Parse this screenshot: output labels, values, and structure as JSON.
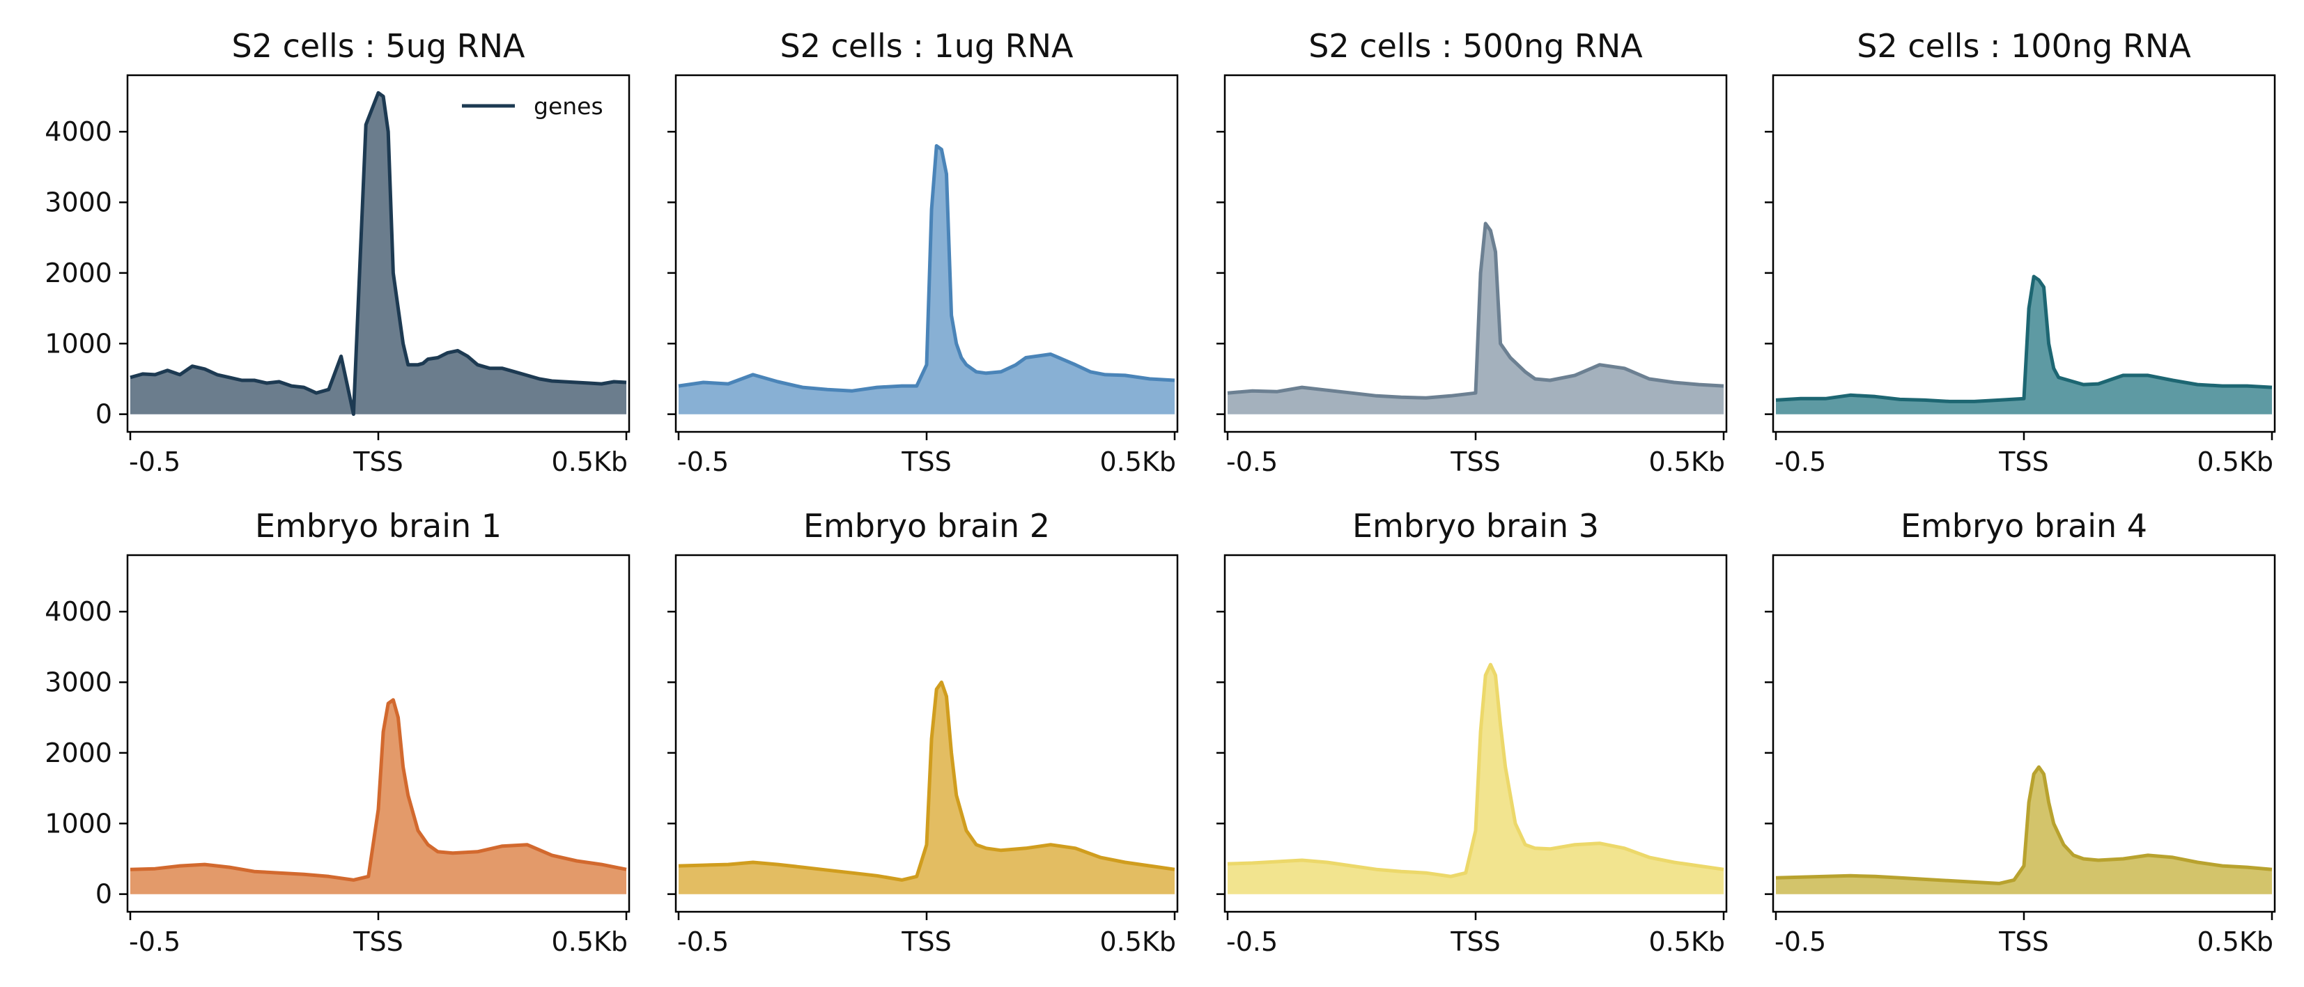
{
  "chart_data": [
    {
      "type": "area",
      "title": "S2 cells : 5ug RNA",
      "color": "#1d3a52",
      "fill_color": "#6b7d8d",
      "ylim": [
        -250,
        4800
      ],
      "yticks": [
        0,
        1000,
        2000,
        3000,
        4000
      ],
      "show_ytick_labels": true,
      "xticks": [
        "-0.5",
        "TSS",
        "0.5Kb"
      ],
      "legend": {
        "label": "genes",
        "position": "top-right"
      },
      "series": [
        {
          "name": "genes",
          "x": [
            -0.5,
            -0.475,
            -0.45,
            -0.425,
            -0.4,
            -0.375,
            -0.35,
            -0.325,
            -0.3,
            -0.275,
            -0.25,
            -0.225,
            -0.2,
            -0.175,
            -0.15,
            -0.125,
            -0.1,
            -0.075,
            -0.05,
            -0.025,
            0,
            0.01,
            0.02,
            0.03,
            0.04,
            0.05,
            0.06,
            0.07,
            0.08,
            0.09,
            0.1,
            0.12,
            0.14,
            0.16,
            0.18,
            0.2,
            0.225,
            0.25,
            0.275,
            0.3,
            0.325,
            0.35,
            0.375,
            0.4,
            0.425,
            0.45,
            0.475,
            0.5
          ],
          "y": [
            520,
            570,
            560,
            620,
            560,
            680,
            640,
            560,
            520,
            480,
            480,
            440,
            460,
            400,
            380,
            300,
            350,
            820,
            1,
            4100,
            4550,
            4500,
            4000,
            2000,
            1500,
            1000,
            700,
            700,
            700,
            720,
            780,
            800,
            870,
            900,
            820,
            700,
            650,
            650,
            600,
            550,
            500,
            470,
            460,
            450,
            440,
            430,
            460,
            450
          ]
        }
      ]
    },
    {
      "type": "area",
      "title": "S2 cells : 1ug RNA",
      "color": "#4a84b8",
      "fill_color": "#88b0d4",
      "ylim": [
        -250,
        4800
      ],
      "yticks": [
        0,
        1000,
        2000,
        3000,
        4000
      ],
      "show_ytick_labels": false,
      "xticks": [
        "-0.5",
        "TSS",
        "0.5Kb"
      ],
      "series": [
        {
          "x": [
            -0.5,
            -0.45,
            -0.4,
            -0.35,
            -0.3,
            -0.25,
            -0.2,
            -0.15,
            -0.1,
            -0.05,
            -0.02,
            0,
            0.01,
            0.02,
            0.03,
            0.04,
            0.05,
            0.06,
            0.07,
            0.08,
            0.1,
            0.12,
            0.15,
            0.18,
            0.2,
            0.25,
            0.3,
            0.33,
            0.36,
            0.4,
            0.45,
            0.5
          ],
          "y": [
            400,
            450,
            430,
            560,
            460,
            380,
            350,
            330,
            380,
            400,
            400,
            700,
            2900,
            3800,
            3750,
            3400,
            1400,
            1000,
            800,
            700,
            600,
            580,
            600,
            700,
            800,
            850,
            700,
            600,
            560,
            550,
            500,
            480
          ]
        }
      ]
    },
    {
      "type": "area",
      "title": "S2 cells : 500ng RNA",
      "color": "#6c8092",
      "fill_color": "#a4b1bd",
      "ylim": [
        -250,
        4800
      ],
      "yticks": [
        0,
        1000,
        2000,
        3000,
        4000
      ],
      "show_ytick_labels": false,
      "xticks": [
        "-0.5",
        "TSS",
        "0.5Kb"
      ],
      "series": [
        {
          "x": [
            -0.5,
            -0.45,
            -0.4,
            -0.35,
            -0.3,
            -0.25,
            -0.2,
            -0.15,
            -0.1,
            -0.05,
            0,
            0.01,
            0.02,
            0.03,
            0.04,
            0.05,
            0.07,
            0.1,
            0.12,
            0.15,
            0.2,
            0.25,
            0.3,
            0.35,
            0.4,
            0.45,
            0.5
          ],
          "y": [
            300,
            330,
            320,
            380,
            340,
            300,
            260,
            240,
            230,
            260,
            300,
            2000,
            2700,
            2600,
            2300,
            1000,
            800,
            600,
            500,
            480,
            550,
            700,
            650,
            500,
            450,
            420,
            400
          ]
        }
      ]
    },
    {
      "type": "area",
      "title": "S2 cells : 100ng RNA",
      "color": "#1d6672",
      "fill_color": "#5e9aa3",
      "ylim": [
        -250,
        4800
      ],
      "yticks": [
        0,
        1000,
        2000,
        3000,
        4000
      ],
      "show_ytick_labels": false,
      "xticks": [
        "-0.5",
        "TSS",
        "0.5Kb"
      ],
      "series": [
        {
          "x": [
            -0.5,
            -0.45,
            -0.4,
            -0.35,
            -0.3,
            -0.25,
            -0.2,
            -0.15,
            -0.1,
            -0.05,
            0,
            0.01,
            0.02,
            0.03,
            0.04,
            0.05,
            0.06,
            0.07,
            0.09,
            0.12,
            0.15,
            0.2,
            0.25,
            0.3,
            0.35,
            0.4,
            0.45,
            0.5
          ],
          "y": [
            200,
            220,
            220,
            270,
            250,
            210,
            200,
            180,
            180,
            200,
            220,
            1500,
            1950,
            1900,
            1800,
            1000,
            650,
            520,
            480,
            420,
            430,
            550,
            550,
            480,
            420,
            400,
            400,
            380
          ]
        }
      ]
    },
    {
      "type": "area",
      "title": "Embryo brain 1",
      "color": "#d2692e",
      "fill_color": "#e39a6a",
      "ylim": [
        -250,
        4800
      ],
      "yticks": [
        0,
        1000,
        2000,
        3000,
        4000
      ],
      "show_ytick_labels": true,
      "xticks": [
        "-0.5",
        "TSS",
        "0.5Kb"
      ],
      "series": [
        {
          "x": [
            -0.5,
            -0.45,
            -0.4,
            -0.35,
            -0.3,
            -0.25,
            -0.2,
            -0.15,
            -0.1,
            -0.05,
            -0.02,
            0,
            0.01,
            0.02,
            0.03,
            0.04,
            0.05,
            0.06,
            0.08,
            0.1,
            0.12,
            0.15,
            0.2,
            0.25,
            0.3,
            0.35,
            0.4,
            0.45,
            0.5
          ],
          "y": [
            350,
            360,
            400,
            420,
            380,
            320,
            300,
            280,
            250,
            200,
            250,
            1200,
            2300,
            2700,
            2750,
            2500,
            1800,
            1400,
            900,
            700,
            600,
            580,
            600,
            680,
            700,
            550,
            470,
            420,
            350
          ]
        }
      ]
    },
    {
      "type": "area",
      "title": "Embryo brain 2",
      "color": "#d09d1e",
      "fill_color": "#e3bd62",
      "ylim": [
        -250,
        4800
      ],
      "yticks": [
        0,
        1000,
        2000,
        3000,
        4000
      ],
      "show_ytick_labels": false,
      "xticks": [
        "-0.5",
        "TSS",
        "0.5Kb"
      ],
      "series": [
        {
          "x": [
            -0.5,
            -0.45,
            -0.4,
            -0.35,
            -0.3,
            -0.25,
            -0.2,
            -0.15,
            -0.1,
            -0.05,
            -0.02,
            0,
            0.01,
            0.02,
            0.03,
            0.04,
            0.05,
            0.06,
            0.08,
            0.1,
            0.12,
            0.15,
            0.2,
            0.25,
            0.3,
            0.35,
            0.4,
            0.45,
            0.5
          ],
          "y": [
            400,
            410,
            420,
            450,
            420,
            380,
            340,
            300,
            260,
            200,
            250,
            700,
            2200,
            2900,
            3000,
            2800,
            2000,
            1400,
            900,
            700,
            650,
            620,
            650,
            700,
            650,
            520,
            450,
            400,
            350
          ]
        }
      ]
    },
    {
      "type": "area",
      "title": "Embryo brain 3",
      "color": "#ecd86a",
      "fill_color": "#f2e48f",
      "ylim": [
        -250,
        4800
      ],
      "yticks": [
        0,
        1000,
        2000,
        3000,
        4000
      ],
      "show_ytick_labels": false,
      "xticks": [
        "-0.5",
        "TSS",
        "0.5Kb"
      ],
      "series": [
        {
          "x": [
            -0.5,
            -0.45,
            -0.4,
            -0.35,
            -0.3,
            -0.25,
            -0.2,
            -0.15,
            -0.1,
            -0.05,
            -0.02,
            0,
            0.01,
            0.02,
            0.03,
            0.04,
            0.05,
            0.06,
            0.08,
            0.1,
            0.12,
            0.15,
            0.2,
            0.25,
            0.3,
            0.35,
            0.4,
            0.45,
            0.5
          ],
          "y": [
            430,
            440,
            460,
            480,
            450,
            400,
            350,
            320,
            300,
            250,
            300,
            900,
            2300,
            3100,
            3250,
            3100,
            2400,
            1800,
            1000,
            700,
            650,
            640,
            700,
            720,
            650,
            520,
            450,
            400,
            350
          ]
        }
      ]
    },
    {
      "type": "area",
      "title": "Embryo brain 4",
      "color": "#b8a22e",
      "fill_color": "#d3c46b",
      "ylim": [
        -250,
        4800
      ],
      "yticks": [
        0,
        1000,
        2000,
        3000,
        4000
      ],
      "show_ytick_labels": false,
      "xticks": [
        "-0.5",
        "TSS",
        "0.5Kb"
      ],
      "series": [
        {
          "x": [
            -0.5,
            -0.45,
            -0.4,
            -0.35,
            -0.3,
            -0.25,
            -0.2,
            -0.15,
            -0.1,
            -0.05,
            -0.02,
            0,
            0.01,
            0.02,
            0.03,
            0.04,
            0.05,
            0.06,
            0.08,
            0.1,
            0.12,
            0.15,
            0.2,
            0.25,
            0.3,
            0.35,
            0.4,
            0.45,
            0.5
          ],
          "y": [
            230,
            240,
            250,
            260,
            250,
            230,
            210,
            190,
            170,
            150,
            200,
            400,
            1300,
            1700,
            1800,
            1700,
            1300,
            1000,
            700,
            550,
            500,
            480,
            500,
            550,
            520,
            450,
            400,
            380,
            350
          ]
        }
      ]
    }
  ]
}
